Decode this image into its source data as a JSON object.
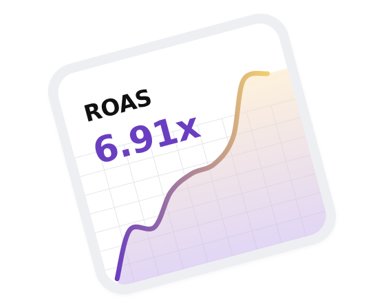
{
  "card": {
    "metric_label": "ROAS",
    "metric_value": "6.91x"
  },
  "colors": {
    "frame": "#eeeff2",
    "card_background": "#ffffff",
    "label": "#111111",
    "value": "#6a3ec0",
    "line_start": "#6a3ec0",
    "line_end": "#f2cd6e",
    "fill_bottom": "#c9b5ec",
    "fill_top": "#fde7bf",
    "grid": "#e6e6ec"
  },
  "chart_data": {
    "type": "area",
    "title": "",
    "xlabel": "",
    "ylabel": "",
    "x": [
      0,
      1,
      2,
      3,
      4,
      5,
      6,
      7,
      8
    ],
    "series": [
      {
        "values": [
          5,
          30,
          28,
          45,
          52,
          54,
          66,
          96,
          96
        ]
      }
    ],
    "ylim": [
      0,
      100
    ],
    "grid": true,
    "legend": "none"
  }
}
